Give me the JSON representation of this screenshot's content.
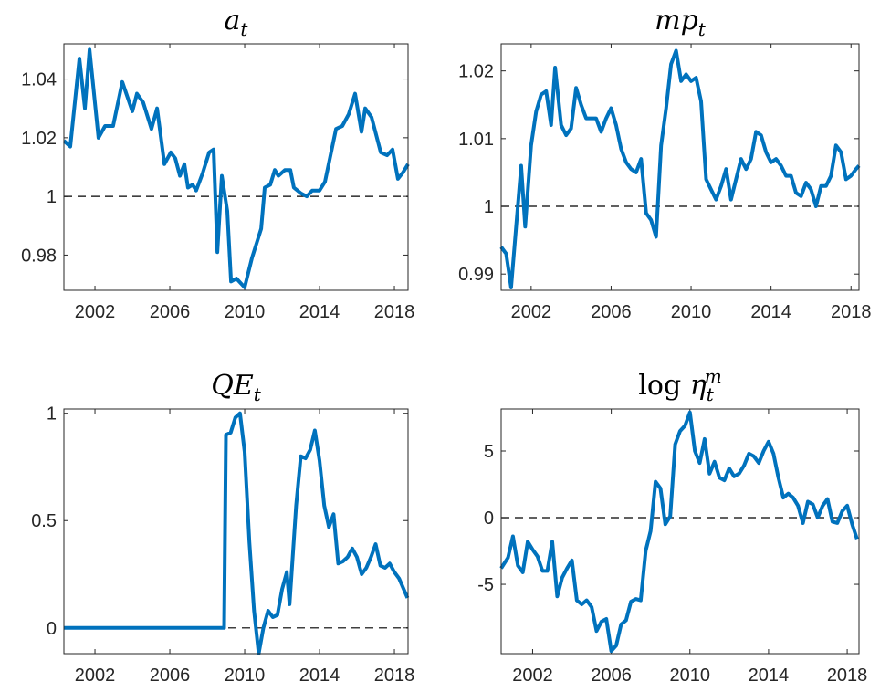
{
  "chart_data": [
    {
      "type": "line",
      "title": {
        "text": "a",
        "sub": "t"
      },
      "color": "#0072bd",
      "hline": 1,
      "xlim": [
        2000.34,
        2018.73
      ],
      "xticks": [
        2002,
        2006,
        2010,
        2014,
        2018
      ],
      "ylim": [
        0.968,
        1.052
      ],
      "yticks": [
        0.98,
        1,
        1.02,
        1.04
      ],
      "x": [
        2000.34,
        2000.68,
        2001.17,
        2001.46,
        2001.71,
        2002.19,
        2002.54,
        2002.97,
        2003.46,
        2004.0,
        2004.24,
        2004.58,
        2005.02,
        2005.32,
        2005.71,
        2006.05,
        2006.29,
        2006.54,
        2006.78,
        2006.97,
        2007.22,
        2007.41,
        2007.76,
        2008.1,
        2008.34,
        2008.54,
        2008.78,
        2009.07,
        2009.27,
        2009.56,
        2010.0,
        2010.39,
        2010.88,
        2011.07,
        2011.37,
        2011.61,
        2011.8,
        2012.15,
        2012.44,
        2012.63,
        2013.02,
        2013.32,
        2013.61,
        2014.0,
        2014.29,
        2014.88,
        2015.22,
        2015.56,
        2015.9,
        2016.24,
        2016.44,
        2016.78,
        2017.27,
        2017.61,
        2017.9,
        2018.19,
        2018.44,
        2018.73
      ],
      "values": [
        1.019,
        1.017,
        1.047,
        1.03,
        1.05,
        1.02,
        1.024,
        1.024,
        1.039,
        1.029,
        1.035,
        1.032,
        1.023,
        1.03,
        1.011,
        1.015,
        1.013,
        1.007,
        1.011,
        1.003,
        1.004,
        1.002,
        1.008,
        1.015,
        1.016,
        0.981,
        1.007,
        0.995,
        0.971,
        0.972,
        0.969,
        0.979,
        0.989,
        1.003,
        1.004,
        1.009,
        1.007,
        1.009,
        1.009,
        1.003,
        1.001,
        1.0,
        1.002,
        1.002,
        1.005,
        1.023,
        1.024,
        1.028,
        1.035,
        1.022,
        1.03,
        1.027,
        1.015,
        1.014,
        1.016,
        1.006,
        1.008,
        1.011
      ]
    },
    {
      "type": "line",
      "title": {
        "text": "mp",
        "sub": "t"
      },
      "color": "#0072bd",
      "hline": 1,
      "xlim": [
        2000.5,
        2018.4
      ],
      "xticks": [
        2002,
        2006,
        2010,
        2014,
        2018
      ],
      "ylim": [
        0.9876,
        1.024
      ],
      "yticks": [
        0.99,
        1,
        1.01,
        1.02
      ],
      "x": [
        2000.5,
        2000.75,
        2001.0,
        2001.5,
        2001.7,
        2002.0,
        2002.25,
        2002.5,
        2002.75,
        2003.0,
        2003.2,
        2003.5,
        2003.75,
        2004.0,
        2004.25,
        2004.5,
        2004.75,
        2005.0,
        2005.25,
        2005.5,
        2005.75,
        2006.0,
        2006.25,
        2006.5,
        2006.75,
        2007.0,
        2007.25,
        2007.5,
        2007.75,
        2008.0,
        2008.25,
        2008.5,
        2008.75,
        2009.0,
        2009.25,
        2009.5,
        2009.75,
        2010.0,
        2010.25,
        2010.5,
        2010.75,
        2011.0,
        2011.25,
        2011.5,
        2011.75,
        2012.0,
        2012.25,
        2012.5,
        2012.75,
        2013.0,
        2013.25,
        2013.5,
        2013.75,
        2014.0,
        2014.25,
        2014.5,
        2014.75,
        2015.0,
        2015.25,
        2015.5,
        2015.75,
        2016.0,
        2016.25,
        2016.5,
        2016.75,
        2017.0,
        2017.25,
        2017.5,
        2017.75,
        2018.0,
        2018.25,
        2018.4
      ],
      "values": [
        0.994,
        0.993,
        0.988,
        1.006,
        0.997,
        1.009,
        1.014,
        1.0165,
        1.017,
        1.012,
        1.0205,
        1.012,
        1.0105,
        1.0115,
        1.0175,
        1.015,
        1.013,
        1.013,
        1.013,
        1.011,
        1.013,
        1.0145,
        1.012,
        1.0085,
        1.0065,
        1.0055,
        1.005,
        1.007,
        0.999,
        0.998,
        0.9955,
        1.009,
        1.0145,
        1.021,
        1.023,
        1.0185,
        1.0195,
        1.0185,
        1.019,
        1.0155,
        1.004,
        1.0025,
        1.001,
        1.003,
        1.0055,
        1.001,
        1.004,
        1.007,
        1.0055,
        1.007,
        1.011,
        1.0105,
        1.008,
        1.0065,
        1.007,
        1.006,
        1.0045,
        1.0045,
        1.002,
        1.0015,
        1.0035,
        1.0025,
        1.0,
        1.003,
        1.003,
        1.0045,
        1.009,
        1.008,
        1.004,
        1.0045,
        1.0055,
        1.006
      ]
    },
    {
      "type": "line",
      "title": {
        "text": "QE",
        "sub": "t"
      },
      "color": "#0072bd",
      "hline": 0,
      "xlim": [
        2000.34,
        2018.73
      ],
      "xticks": [
        2002,
        2006,
        2010,
        2014,
        2018
      ],
      "ylim": [
        -0.12,
        1.02
      ],
      "yticks": [
        0,
        0.5,
        1
      ],
      "x": [
        2000.34,
        2008.9,
        2009.0,
        2009.25,
        2009.5,
        2009.75,
        2010.0,
        2010.25,
        2010.5,
        2010.75,
        2011.0,
        2011.25,
        2011.5,
        2011.75,
        2012.0,
        2012.25,
        2012.4,
        2012.75,
        2013.0,
        2013.25,
        2013.5,
        2013.75,
        2014.0,
        2014.25,
        2014.5,
        2014.75,
        2015.0,
        2015.25,
        2015.5,
        2015.75,
        2016.0,
        2016.25,
        2016.5,
        2016.75,
        2017.0,
        2017.25,
        2017.5,
        2017.75,
        2018.0,
        2018.25,
        2018.7
      ],
      "values": [
        0,
        0,
        0.9,
        0.91,
        0.98,
        1.0,
        0.82,
        0.4,
        0.08,
        -0.12,
        0.0,
        0.08,
        0.05,
        0.06,
        0.18,
        0.26,
        0.11,
        0.57,
        0.8,
        0.79,
        0.83,
        0.92,
        0.78,
        0.57,
        0.47,
        0.53,
        0.3,
        0.31,
        0.33,
        0.37,
        0.33,
        0.25,
        0.28,
        0.33,
        0.39,
        0.29,
        0.28,
        0.3,
        0.26,
        0.23,
        0.14
      ]
    },
    {
      "type": "line",
      "title": {
        "prefix": "log",
        "text": "η",
        "sub": "t",
        "sup": "m"
      },
      "color": "#0072bd",
      "hline": 0,
      "xlim": [
        2000.4,
        2018.6
      ],
      "xticks": [
        2002,
        2006,
        2010,
        2014,
        2018
      ],
      "ylim": [
        -10.2,
        8.15
      ],
      "yticks": [
        -5,
        0,
        5
      ],
      "x": [
        2000.4,
        2000.75,
        2001.0,
        2001.25,
        2001.5,
        2001.75,
        2002.0,
        2002.25,
        2002.5,
        2002.75,
        2003.0,
        2003.25,
        2003.5,
        2003.75,
        2004.0,
        2004.25,
        2004.5,
        2004.75,
        2005.0,
        2005.25,
        2005.5,
        2005.75,
        2006.0,
        2006.25,
        2006.5,
        2006.75,
        2007.0,
        2007.25,
        2007.5,
        2007.75,
        2008.0,
        2008.25,
        2008.5,
        2008.75,
        2009.0,
        2009.25,
        2009.5,
        2009.75,
        2010.0,
        2010.25,
        2010.5,
        2010.75,
        2011.0,
        2011.25,
        2011.5,
        2011.75,
        2012.0,
        2012.25,
        2012.5,
        2012.75,
        2013.0,
        2013.25,
        2013.5,
        2013.75,
        2014.0,
        2014.25,
        2014.5,
        2014.75,
        2015.0,
        2015.25,
        2015.5,
        2015.75,
        2016.0,
        2016.25,
        2016.5,
        2016.75,
        2017.0,
        2017.25,
        2017.5,
        2017.75,
        2018.0,
        2018.25,
        2018.5
      ],
      "values": [
        -3.8,
        -3.0,
        -1.4,
        -3.6,
        -4.1,
        -1.8,
        -2.4,
        -2.9,
        -4.0,
        -4.0,
        -1.8,
        -5.9,
        -4.5,
        -3.8,
        -3.2,
        -6.2,
        -6.5,
        -6.2,
        -6.7,
        -8.5,
        -7.8,
        -7.6,
        -10.0,
        -9.6,
        -8.0,
        -7.7,
        -6.3,
        -6.1,
        -6.2,
        -2.5,
        -1.0,
        2.7,
        2.2,
        -0.5,
        0.1,
        5.5,
        6.5,
        6.9,
        7.9,
        5.0,
        4.1,
        5.9,
        3.3,
        4.2,
        3.0,
        2.8,
        3.7,
        3.1,
        3.3,
        3.9,
        4.8,
        4.6,
        4.1,
        5.0,
        5.7,
        4.8,
        3.0,
        1.5,
        1.8,
        1.5,
        0.9,
        -0.4,
        1.2,
        1.0,
        0.0,
        0.9,
        1.4,
        -0.3,
        -0.4,
        0.5,
        0.9,
        -0.5,
        -1.6
      ]
    }
  ]
}
